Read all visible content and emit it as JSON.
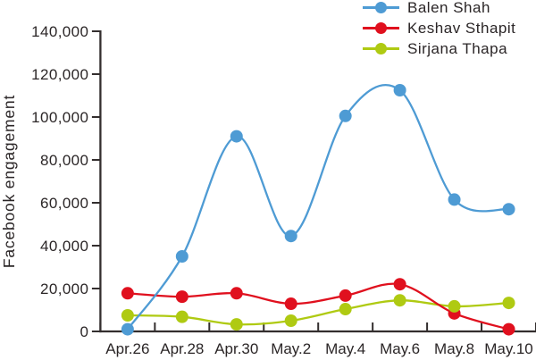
{
  "figure": {
    "background": "#ffffff",
    "text_color": "#2b2627",
    "axis_color": "#332e2e"
  },
  "chart_data": {
    "type": "line",
    "title": "",
    "xlabel": "",
    "ylabel": "Facebook engagement",
    "categories": [
      "Apr.26",
      "Apr.28",
      "Apr.30",
      "May.2",
      "May.4",
      "May.6",
      "May.8",
      "May.10"
    ],
    "series": [
      {
        "name": "Balen Shah",
        "color": "#4E9BD4",
        "values": [
          1000,
          35000,
          91000,
          44500,
          100500,
          112500,
          61500,
          57000
        ]
      },
      {
        "name": "Keshav Sthapit",
        "color": "#E0101E",
        "values": [
          17800,
          16200,
          17800,
          12900,
          16700,
          22000,
          8400,
          1000
        ]
      },
      {
        "name": "Sirjana Thapa",
        "color": "#AFCA12",
        "values": [
          7500,
          6800,
          3300,
          5000,
          10400,
          14500,
          11700,
          13300
        ]
      }
    ],
    "ylim": [
      0,
      140000
    ],
    "ytick_step": 20000,
    "ytick_labels": [
      "0",
      "20,000",
      "40,000",
      "60,000",
      "80,000",
      "100,000",
      "120,000",
      "140,000"
    ],
    "grid": false,
    "legend_position": "top-right",
    "marker": "circle",
    "curve": "smooth"
  }
}
